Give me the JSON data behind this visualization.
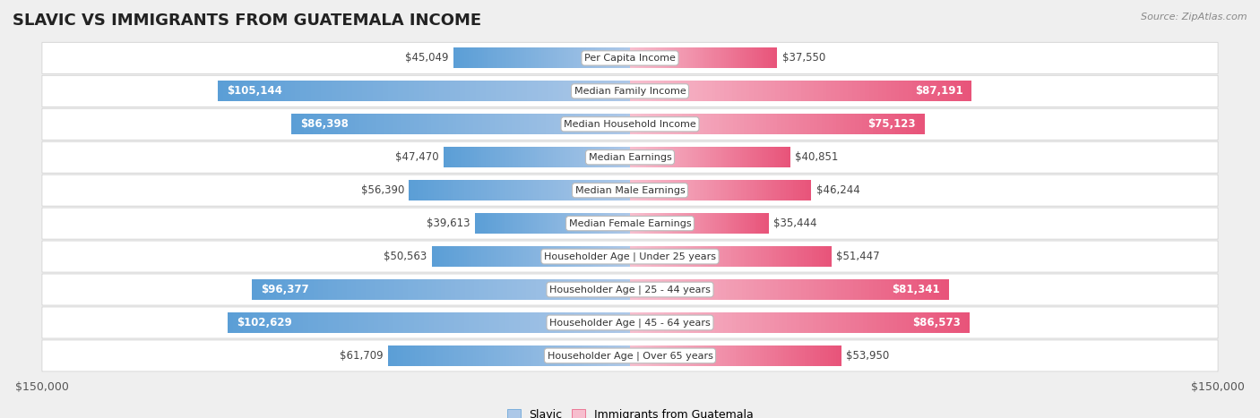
{
  "title": "SLAVIC VS IMMIGRANTS FROM GUATEMALA INCOME",
  "source": "Source: ZipAtlas.com",
  "categories": [
    "Per Capita Income",
    "Median Family Income",
    "Median Household Income",
    "Median Earnings",
    "Median Male Earnings",
    "Median Female Earnings",
    "Householder Age | Under 25 years",
    "Householder Age | 25 - 44 years",
    "Householder Age | 45 - 64 years",
    "Householder Age | Over 65 years"
  ],
  "slavic_values": [
    45049,
    105144,
    86398,
    47470,
    56390,
    39613,
    50563,
    96377,
    102629,
    61709
  ],
  "guatemala_values": [
    37550,
    87191,
    75123,
    40851,
    46244,
    35444,
    51447,
    81341,
    86573,
    53950
  ],
  "slavic_labels": [
    "$45,049",
    "$105,144",
    "$86,398",
    "$47,470",
    "$56,390",
    "$39,613",
    "$50,563",
    "$96,377",
    "$102,629",
    "$61,709"
  ],
  "guatemala_labels": [
    "$37,550",
    "$87,191",
    "$75,123",
    "$40,851",
    "$46,244",
    "$35,444",
    "$51,447",
    "$81,341",
    "$86,573",
    "$53,950"
  ],
  "slavic_color_light": "#adc8e8",
  "slavic_color_dark": "#5b9ed6",
  "guatemala_color_light": "#f7bece",
  "guatemala_color_dark": "#e8547a",
  "max_value": 150000,
  "background_color": "#efefef",
  "row_bg_color": "#ffffff",
  "bar_height": 0.62,
  "label_threshold": 70000,
  "legend_slavic": "Slavic",
  "legend_guatemala": "Immigrants from Guatemala",
  "title_fontsize": 13,
  "label_fontsize": 8.5,
  "cat_fontsize": 8.0,
  "axis_label_fontsize": 9
}
